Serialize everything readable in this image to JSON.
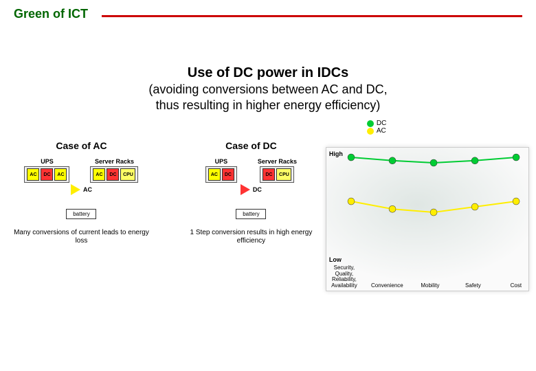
{
  "header": {
    "title": "Green of ICT",
    "title_color": "#006600",
    "line_color": "#cc0000"
  },
  "main": {
    "title": "Use of DC power in IDCs",
    "subtitle1": "(avoiding conversions between AC and DC,",
    "subtitle2": "thus resulting in higher energy efficiency)"
  },
  "caseAC": {
    "title": "Case of AC",
    "ups_label": "UPS",
    "racks_label": "Server Racks",
    "ups_chips": [
      "AC",
      "DC",
      "AC"
    ],
    "rack_chips": [
      "AC",
      "DC",
      "CPU"
    ],
    "bus_label": "AC",
    "bus_arrow_color": "#ffee00",
    "battery_label": "battery",
    "caption": "Many conversions of current leads to energy loss"
  },
  "caseDC": {
    "title": "Case of DC",
    "ups_label": "UPS",
    "racks_label": "Server Racks",
    "ups_chips": [
      "AC",
      "DC"
    ],
    "rack_chips": [
      "DC",
      "CPU"
    ],
    "bus_label": "DC",
    "bus_arrow_color": "#ff3333",
    "battery_label": "battery",
    "caption": "1 Step conversion results in high energy efficiency"
  },
  "legend": {
    "dc_label": "DC",
    "dc_color": "#00cc33",
    "ac_label": "AC",
    "ac_color": "#ffee00"
  },
  "chart": {
    "type": "line",
    "background": "#fafafa",
    "y_high": "High",
    "y_low": "Low",
    "categories": [
      {
        "label": "Security, Quality, Reliability, Availability"
      },
      {
        "label": "Convenience"
      },
      {
        "label": "Mobility"
      },
      {
        "label": "Safety"
      },
      {
        "label": "Cost"
      }
    ],
    "series": [
      {
        "name": "DC",
        "color": "#00cc33",
        "marker": "circle",
        "marker_color": "#00cc33",
        "values": [
          95,
          92,
          90,
          92,
          95
        ]
      },
      {
        "name": "AC",
        "color": "#ffee00",
        "marker": "circle",
        "marker_color": "#ffee00",
        "values": [
          55,
          48,
          45,
          50,
          55
        ]
      }
    ],
    "ylim": [
      0,
      100
    ],
    "line_width": 2,
    "marker_size": 5
  },
  "colors": {
    "ac_chip": "#ffff00",
    "dc_chip": "#ff3333"
  }
}
